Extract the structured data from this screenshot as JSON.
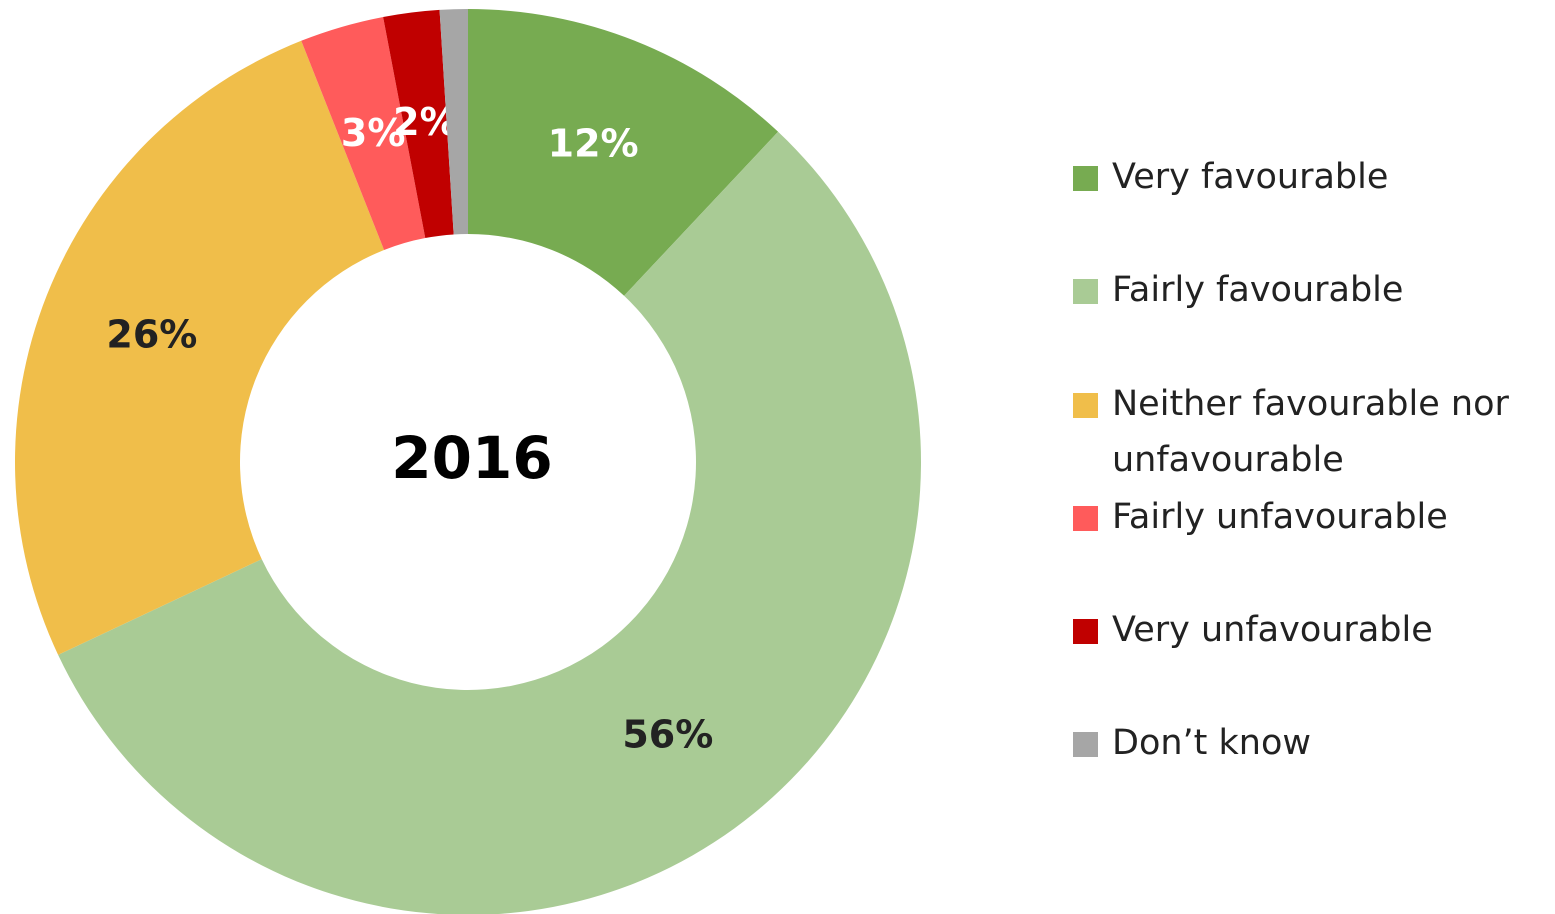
{
  "chart_data": {
    "type": "donut",
    "title": "2016",
    "categories": [
      "Very favourable",
      "Fairly favourable",
      "Neither favourable nor unfavourable",
      "Fairly unfavourable",
      "Very unfavourable",
      "Don’t know"
    ],
    "values": [
      12,
      56,
      26,
      3,
      2,
      1
    ],
    "value_labels": [
      "12%",
      "56%",
      "26%",
      "3%",
      "2%",
      null
    ],
    "colors": [
      "#77ab51",
      "#a9cb95",
      "#f0be4a",
      "#ff5b5b",
      "#c00000",
      "#a6a6a6"
    ],
    "label_colors": [
      "#ffffff",
      "#222222",
      "#222222",
      "#ffffff",
      "#ffffff",
      "#222222"
    ],
    "legend": "right"
  }
}
